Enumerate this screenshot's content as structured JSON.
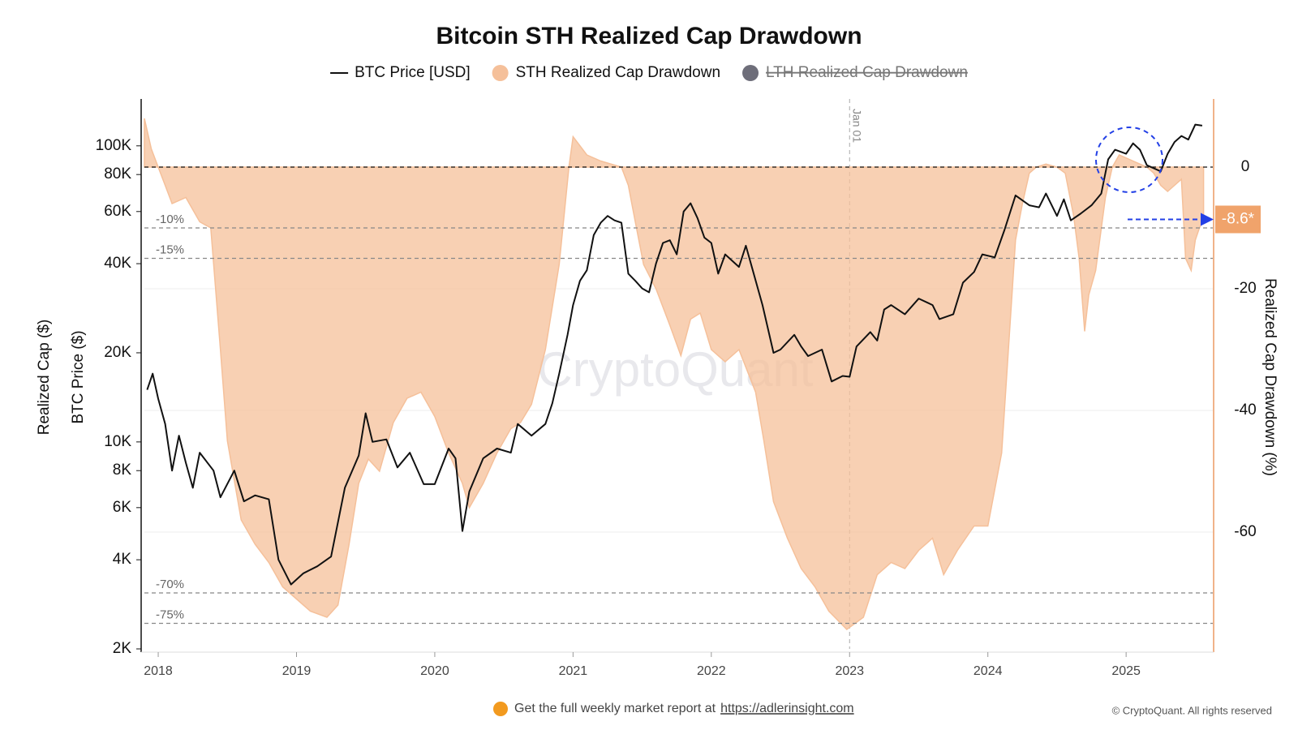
{
  "chart_data": {
    "type": "dual-axis-line-area",
    "title": "Bitcoin STH Realized Cap Drawdown",
    "y_label_left": [
      "Realized Cap ($)",
      "BTC Price ($)"
    ],
    "y2_label": "Realized Cap Drawdown (%)",
    "xlim": [
      2017.9,
      2025.58
    ],
    "xticks": [
      2018,
      2019,
      2020,
      2021,
      2022,
      2023,
      2024,
      2025
    ],
    "ylog": true,
    "ylim": [
      2000,
      144000
    ],
    "yticks": [
      {
        "value": 2000,
        "label": "2K"
      },
      {
        "value": 4000,
        "label": "4K"
      },
      {
        "value": 6000,
        "label": "6K"
      },
      {
        "value": 8000,
        "label": "8K"
      },
      {
        "value": 10000,
        "label": "10K"
      },
      {
        "value": 20000,
        "label": "20K"
      },
      {
        "value": 40000,
        "label": "40K"
      },
      {
        "value": 60000,
        "label": "60K"
      },
      {
        "value": 80000,
        "label": "80K"
      },
      {
        "value": 100000,
        "label": "100K"
      }
    ],
    "y2lim": [
      -79.2,
      11.2
    ],
    "y2ticks": [
      0,
      -20,
      -40,
      -60
    ],
    "grid": true,
    "series": [
      {
        "name": "BTC Price [USD]",
        "style": "line",
        "color": "#111111",
        "x": [
          2017.92,
          2017.96,
          2018.0,
          2018.05,
          2018.1,
          2018.15,
          2018.2,
          2018.25,
          2018.3,
          2018.4,
          2018.45,
          2018.55,
          2018.62,
          2018.7,
          2018.8,
          2018.87,
          2018.96,
          2019.05,
          2019.15,
          2019.25,
          2019.35,
          2019.45,
          2019.5,
          2019.55,
          2019.65,
          2019.73,
          2019.82,
          2019.92,
          2020.0,
          2020.1,
          2020.15,
          2020.2,
          2020.25,
          2020.35,
          2020.45,
          2020.55,
          2020.6,
          2020.7,
          2020.8,
          2020.85,
          2020.9,
          2020.96,
          2021.0,
          2021.05,
          2021.1,
          2021.15,
          2021.2,
          2021.25,
          2021.3,
          2021.35,
          2021.4,
          2021.45,
          2021.5,
          2021.55,
          2021.6,
          2021.65,
          2021.7,
          2021.75,
          2021.8,
          2021.85,
          2021.9,
          2021.95,
          2022.0,
          2022.05,
          2022.1,
          2022.2,
          2022.25,
          2022.3,
          2022.37,
          2022.45,
          2022.5,
          2022.6,
          2022.65,
          2022.7,
          2022.8,
          2022.87,
          2022.95,
          2023.0,
          2023.05,
          2023.15,
          2023.2,
          2023.25,
          2023.3,
          2023.4,
          2023.5,
          2023.6,
          2023.65,
          2023.75,
          2023.82,
          2023.9,
          2023.96,
          2024.05,
          2024.12,
          2024.2,
          2024.3,
          2024.37,
          2024.42,
          2024.5,
          2024.55,
          2024.6,
          2024.67,
          2024.75,
          2024.82,
          2024.87,
          2024.92,
          2025.0,
          2025.05,
          2025.1,
          2025.15,
          2025.2,
          2025.25,
          2025.3,
          2025.35,
          2025.4,
          2025.45,
          2025.5,
          2025.55
        ],
        "values": [
          15000,
          17000,
          14000,
          11500,
          8000,
          10500,
          8500,
          7000,
          9200,
          8000,
          6500,
          8000,
          6300,
          6600,
          6400,
          4000,
          3300,
          3600,
          3800,
          4100,
          7000,
          9000,
          12500,
          10000,
          10200,
          8200,
          9200,
          7200,
          7200,
          9500,
          8800,
          5000,
          6800,
          8800,
          9500,
          9200,
          11500,
          10500,
          11500,
          13500,
          17000,
          23000,
          29000,
          35000,
          38000,
          50000,
          55000,
          58000,
          56000,
          55000,
          37000,
          35000,
          33000,
          32000,
          40000,
          47000,
          48000,
          43000,
          60000,
          64000,
          57000,
          49000,
          47000,
          37000,
          43000,
          39000,
          46000,
          38000,
          29000,
          20000,
          20500,
          23000,
          21000,
          19500,
          20500,
          16000,
          16700,
          16600,
          21000,
          23500,
          22000,
          28000,
          29000,
          27000,
          30500,
          29000,
          26000,
          27000,
          34500,
          37500,
          43000,
          42000,
          52000,
          68000,
          63000,
          62000,
          69000,
          58000,
          66000,
          56000,
          59000,
          63000,
          69000,
          90000,
          97000,
          94000,
          102000,
          97000,
          86000,
          84000,
          82000,
          94000,
          103000,
          108000,
          105000,
          118000,
          117000
        ]
      },
      {
        "name": "STH Realized Cap Drawdown",
        "style": "area",
        "axis": "y2",
        "color": "#f5c09a",
        "x": [
          2017.9,
          2017.95,
          2018.0,
          2018.05,
          2018.1,
          2018.2,
          2018.3,
          2018.38,
          2018.45,
          2018.5,
          2018.6,
          2018.7,
          2018.8,
          2018.9,
          2019.0,
          2019.1,
          2019.22,
          2019.3,
          2019.38,
          2019.45,
          2019.52,
          2019.6,
          2019.7,
          2019.8,
          2019.9,
          2020.0,
          2020.1,
          2020.2,
          2020.25,
          2020.35,
          2020.45,
          2020.55,
          2020.62,
          2020.7,
          2020.8,
          2020.9,
          2020.97,
          2021.0,
          2021.1,
          2021.2,
          2021.35,
          2021.4,
          2021.45,
          2021.51,
          2021.6,
          2021.7,
          2021.78,
          2021.85,
          2021.92,
          2022.0,
          2022.1,
          2022.2,
          2022.32,
          2022.38,
          2022.45,
          2022.55,
          2022.65,
          2022.75,
          2022.85,
          2022.98,
          2023.1,
          2023.2,
          2023.3,
          2023.4,
          2023.5,
          2023.6,
          2023.68,
          2023.78,
          2023.9,
          2024.0,
          2024.1,
          2024.16,
          2024.2,
          2024.25,
          2024.3,
          2024.35,
          2024.42,
          2024.5,
          2024.56,
          2024.62,
          2024.66,
          2024.7,
          2024.73,
          2024.78,
          2024.85,
          2024.9,
          2024.95,
          2025.05,
          2025.15,
          2025.2,
          2025.25,
          2025.3,
          2025.35,
          2025.4,
          2025.43,
          2025.47,
          2025.5,
          2025.53,
          2025.56
        ],
        "values": [
          8,
          3,
          0,
          -3,
          -6,
          -5,
          -9,
          -10,
          -30,
          -45,
          -58,
          -62,
          -65,
          -69,
          -71,
          -73,
          -74,
          -72,
          -62,
          -52,
          -48,
          -50,
          -42,
          -38,
          -37,
          -41,
          -47,
          -52,
          -56,
          -52,
          -47,
          -43,
          -42,
          -39,
          -30,
          -16,
          0,
          5,
          2,
          1,
          0,
          -3,
          -9,
          -16,
          -20,
          -26,
          -31,
          -25,
          -24,
          -30,
          -32,
          -30,
          -37,
          -45,
          -55,
          -61,
          -66,
          -69,
          -73,
          -76,
          -74,
          -67,
          -65,
          -66,
          -63,
          -61,
          -67,
          -63,
          -59,
          -59,
          -47,
          -26,
          -12,
          -6,
          -1,
          0,
          0.5,
          0,
          -1,
          -8,
          -15,
          -27,
          -21,
          -17,
          -5,
          0,
          2,
          1,
          0,
          -1,
          -3,
          -4,
          -3,
          -2,
          -15,
          -17,
          -12,
          -10,
          -8.6
        ]
      },
      {
        "name": "LTH Realized Cap Drawdown",
        "style": "area",
        "axis": "y2",
        "color": "#6e6e7a",
        "hidden": true
      }
    ],
    "reference_lines": [
      {
        "value": 0
      },
      {
        "value": -10,
        "label": "-10%"
      },
      {
        "value": -15,
        "label": "-15%"
      },
      {
        "value": -70,
        "label": "-70%"
      },
      {
        "value": -75,
        "label": "-75%"
      }
    ],
    "vertical_marker": {
      "x": 2023.0,
      "label": "Jan 01"
    },
    "current_value": {
      "value": -8.6,
      "label": "-8.6*",
      "color": "#f0a36b"
    },
    "watermark": "CryptoQuant",
    "footer": {
      "text": "Get the full weekly market report at",
      "link": "https://adlerinsight.com",
      "copyright": "© CryptoQuant. All rights reserved"
    }
  }
}
